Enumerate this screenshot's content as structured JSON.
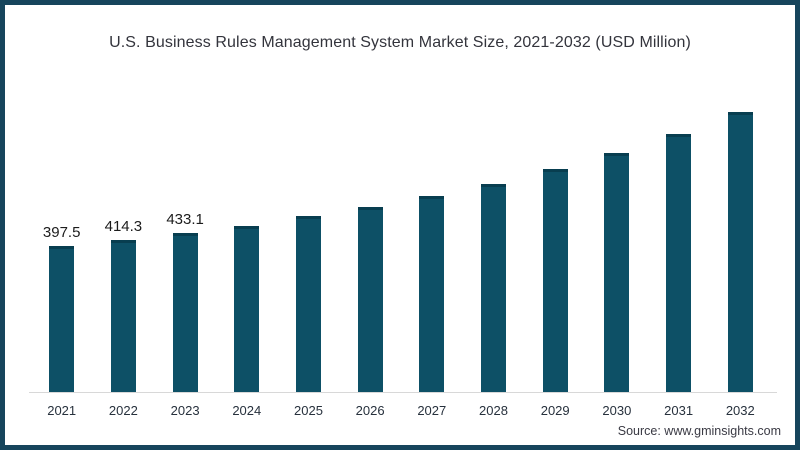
{
  "frame": {
    "border_color": "#16455c",
    "background_color": "#ffffff"
  },
  "chart_data": {
    "type": "bar",
    "title": "U.S. Business Rules Management System Market Size, 2021-2032 (USD Million)",
    "xlabel": "",
    "ylabel": "",
    "categories": [
      "2021",
      "2022",
      "2023",
      "2024",
      "2025",
      "2026",
      "2027",
      "2028",
      "2029",
      "2030",
      "2031",
      "2032"
    ],
    "values": [
      397.5,
      414.3,
      433.1,
      453,
      480,
      505,
      534,
      568,
      607,
      651,
      703,
      763
    ],
    "bar_labels": [
      "397.5",
      "414.3",
      "433.1",
      "",
      "",
      "",
      "",
      "",
      "",
      "",
      "",
      ""
    ],
    "bar_color": "#0d5066",
    "axis_line_color": "#d8d8d8",
    "gridlines": false,
    "legend": "none"
  },
  "source": {
    "label": "Source: www.gminsights.com"
  }
}
